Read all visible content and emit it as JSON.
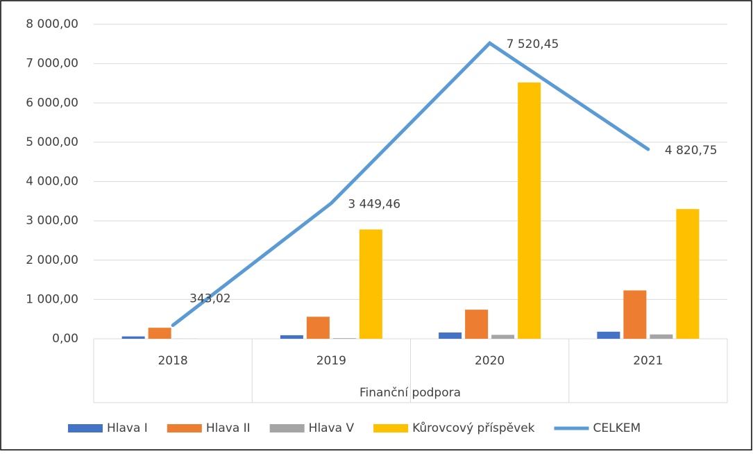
{
  "chart_data": {
    "type": "bar",
    "xlabel": "Finanční podpora",
    "categories": [
      "2018",
      "2019",
      "2020",
      "2021"
    ],
    "series": [
      {
        "name": "Hlava I",
        "color": "#4472c4",
        "values": [
          60,
          90,
          160,
          180
        ]
      },
      {
        "name": "Hlava II",
        "color": "#ed7d31",
        "values": [
          280,
          560,
          740,
          1230
        ]
      },
      {
        "name": "Hlava V",
        "color": "#a5a5a5",
        "values": [
          3,
          15,
          100,
          110
        ]
      },
      {
        "name": "Kůrovcový příspěvek",
        "color": "#ffc000",
        "values": [
          0,
          2780,
          6520,
          3300
        ]
      },
      {
        "name": "CELKEM",
        "type": "line",
        "color": "#5b9bd5",
        "values": [
          343.02,
          3449.46,
          7520.45,
          4820.75
        ],
        "value_labels": [
          "343,02",
          "3 449,46",
          "7 520,45",
          "4 820,75"
        ]
      }
    ],
    "ylim": [
      0,
      8000
    ],
    "yticks": [
      {
        "value": 0,
        "label": "0,00"
      },
      {
        "value": 1000,
        "label": "1 000,00"
      },
      {
        "value": 2000,
        "label": "2 000,00"
      },
      {
        "value": 3000,
        "label": "3 000,00"
      },
      {
        "value": 4000,
        "label": "4 000,00"
      },
      {
        "value": 5000,
        "label": "5 000,00"
      },
      {
        "value": 6000,
        "label": "6 000,00"
      },
      {
        "value": 7000,
        "label": "7 000,00"
      },
      {
        "value": 8000,
        "label": "8 000,00"
      }
    ],
    "grid": true,
    "legend": "bottom"
  }
}
